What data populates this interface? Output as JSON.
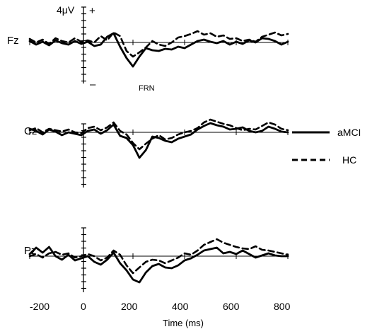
{
  "chart_data": {
    "type": "line",
    "scale": {
      "unit": "4μV",
      "positive": "+",
      "negative": "–"
    },
    "annotation": "FRN",
    "x_axis": {
      "label": "Time (ms)",
      "ticks": [
        -200,
        0,
        200,
        400,
        600,
        800
      ],
      "xlim": [
        -200,
        800
      ]
    },
    "legend": {
      "position": "right",
      "entries": [
        {
          "label": "aMCI",
          "style": "solid"
        },
        {
          "label": "HC",
          "style": "dashed"
        }
      ]
    },
    "panels": [
      {
        "site": "Fz",
        "x": [
          -200,
          -175,
          -150,
          -125,
          -100,
          -75,
          -50,
          -25,
          0,
          25,
          50,
          75,
          100,
          125,
          150,
          175,
          200,
          225,
          250,
          275,
          300,
          325,
          350,
          375,
          400,
          425,
          450,
          475,
          500,
          525,
          550,
          575,
          600,
          625,
          650,
          675,
          700,
          725,
          750,
          775,
          800
        ],
        "series": [
          {
            "name": "aMCI",
            "values": [
              0.2,
              -0.3,
              0.1,
              -0.4,
              0.3,
              -0.1,
              -0.3,
              0.2,
              -0.2,
              0.1,
              -0.5,
              -0.3,
              0.8,
              1.3,
              -0.6,
              -2.2,
              -3.4,
              -2.0,
              -0.8,
              -1.1,
              -1.2,
              -0.9,
              -1.0,
              -0.6,
              -0.8,
              -0.3,
              0.2,
              0.4,
              0.1,
              -0.1,
              0.2,
              -0.3,
              0.1,
              -0.2,
              0.3,
              0.0,
              0.6,
              0.5,
              0.2,
              -0.3,
              0.1
            ]
          },
          {
            "name": "HC",
            "values": [
              0.5,
              0.0,
              0.4,
              -0.2,
              0.6,
              0.2,
              0.0,
              0.6,
              0.1,
              0.3,
              0.0,
              0.9,
              0.3,
              1.4,
              0.9,
              -1.2,
              -2.0,
              -1.4,
              -0.7,
              0.2,
              -0.3,
              -0.5,
              0.0,
              0.7,
              0.9,
              1.2,
              1.6,
              1.1,
              1.3,
              0.8,
              1.0,
              0.5,
              0.6,
              0.2,
              0.4,
              0.1,
              0.8,
              1.1,
              1.4,
              1.0,
              1.2
            ]
          }
        ]
      },
      {
        "site": "Cz",
        "x": [
          -200,
          -175,
          -150,
          -125,
          -100,
          -75,
          -50,
          -25,
          0,
          25,
          50,
          75,
          100,
          125,
          150,
          175,
          200,
          225,
          250,
          275,
          300,
          325,
          350,
          375,
          400,
          425,
          450,
          475,
          500,
          525,
          550,
          575,
          600,
          625,
          650,
          675,
          700,
          725,
          750,
          775,
          800
        ],
        "series": [
          {
            "name": "aMCI",
            "values": [
              0.5,
              0.2,
              -0.3,
              0.4,
              0.1,
              -0.4,
              0.0,
              -0.2,
              -0.4,
              0.2,
              0.4,
              -0.2,
              0.3,
              1.1,
              -0.5,
              -0.8,
              -1.8,
              -3.6,
              -2.5,
              -0.6,
              -0.8,
              -1.2,
              -1.4,
              -0.9,
              -0.6,
              -0.3,
              0.4,
              0.9,
              1.3,
              1.0,
              0.8,
              0.4,
              0.5,
              0.7,
              0.2,
              0.0,
              0.2,
              0.8,
              0.5,
              0.1,
              0.0
            ]
          },
          {
            "name": "HC",
            "values": [
              0.3,
              0.6,
              0.0,
              0.5,
              0.3,
              0.1,
              0.4,
              0.0,
              -0.1,
              0.6,
              0.8,
              0.3,
              0.7,
              1.4,
              0.2,
              -0.3,
              -1.5,
              -2.4,
              -1.6,
              -0.9,
              -0.4,
              -1.0,
              -0.8,
              -0.3,
              0.0,
              0.2,
              0.6,
              1.4,
              1.8,
              1.5,
              1.2,
              1.0,
              0.6,
              0.3,
              0.5,
              0.4,
              0.9,
              1.4,
              1.1,
              0.5,
              0.3
            ]
          }
        ]
      },
      {
        "site": "Pz",
        "x": [
          -200,
          -175,
          -150,
          -125,
          -100,
          -75,
          -50,
          -25,
          0,
          25,
          50,
          75,
          100,
          125,
          150,
          175,
          200,
          225,
          250,
          275,
          300,
          325,
          350,
          375,
          400,
          425,
          450,
          475,
          500,
          525,
          550,
          575,
          600,
          625,
          650,
          675,
          700,
          725,
          750,
          775,
          800
        ],
        "series": [
          {
            "name": "aMCI",
            "values": [
              0.3,
              1.2,
              0.5,
              1.3,
              0.0,
              -0.5,
              0.2,
              -0.6,
              -0.3,
              0.0,
              -0.8,
              -1.2,
              -0.5,
              0.5,
              -1.0,
              -2.0,
              -3.3,
              -3.7,
              -2.3,
              -1.4,
              -1.1,
              -1.6,
              -1.7,
              -1.3,
              -0.6,
              -0.3,
              0.2,
              0.8,
              1.0,
              1.2,
              0.4,
              0.6,
              0.3,
              0.8,
              0.3,
              -0.2,
              0.1,
              0.4,
              0.1,
              0.0,
              0.0
            ]
          },
          {
            "name": "HC",
            "values": [
              0.0,
              0.3,
              -0.2,
              0.4,
              0.6,
              0.2,
              0.4,
              -0.2,
              0.0,
              0.3,
              0.0,
              -0.6,
              -0.2,
              0.8,
              0.2,
              -1.3,
              -2.4,
              -1.6,
              -0.8,
              -0.5,
              -0.6,
              -1.0,
              -0.6,
              -0.2,
              0.4,
              0.2,
              0.8,
              1.6,
              2.0,
              2.4,
              1.9,
              1.6,
              1.3,
              1.1,
              1.0,
              1.4,
              0.9,
              0.8,
              0.6,
              0.4,
              0.2
            ]
          }
        ]
      }
    ]
  }
}
